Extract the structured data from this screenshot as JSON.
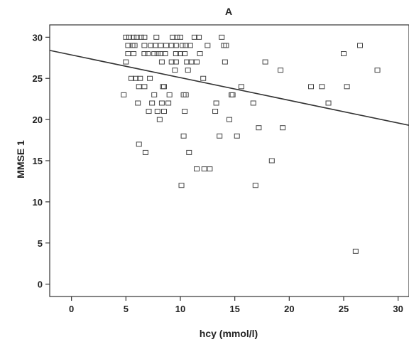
{
  "chart_data": {
    "type": "scatter",
    "title": "A",
    "xlabel": "hcy (mmol/l)",
    "ylabel": "MMSE 1",
    "xlim": [
      -2,
      31
    ],
    "ylim": [
      -1.5,
      31.5
    ],
    "xticks": [
      0,
      5,
      10,
      15,
      20,
      25,
      30
    ],
    "yticks": [
      0,
      5,
      10,
      15,
      20,
      25,
      30
    ],
    "grid": false,
    "points": [
      [
        5.0,
        30
      ],
      [
        5.3,
        30
      ],
      [
        5.7,
        30
      ],
      [
        6.0,
        30
      ],
      [
        6.4,
        30
      ],
      [
        6.7,
        30
      ],
      [
        7.8,
        30
      ],
      [
        9.3,
        30
      ],
      [
        9.7,
        30
      ],
      [
        10.0,
        30
      ],
      [
        11.3,
        30
      ],
      [
        11.7,
        30
      ],
      [
        13.8,
        30
      ],
      [
        5.2,
        29
      ],
      [
        5.6,
        29
      ],
      [
        5.8,
        29
      ],
      [
        6.7,
        29
      ],
      [
        7.3,
        29
      ],
      [
        7.7,
        29
      ],
      [
        8.2,
        29
      ],
      [
        8.7,
        29
      ],
      [
        9.2,
        29
      ],
      [
        9.6,
        29
      ],
      [
        10.2,
        29
      ],
      [
        10.5,
        29
      ],
      [
        10.9,
        29
      ],
      [
        12.5,
        29
      ],
      [
        14.0,
        29
      ],
      [
        14.2,
        29
      ],
      [
        26.5,
        29
      ],
      [
        5.2,
        28
      ],
      [
        5.7,
        28
      ],
      [
        6.7,
        28
      ],
      [
        7.0,
        28
      ],
      [
        7.6,
        28
      ],
      [
        7.9,
        28
      ],
      [
        8.2,
        28
      ],
      [
        8.6,
        28
      ],
      [
        9.6,
        28
      ],
      [
        10.0,
        28
      ],
      [
        10.4,
        28
      ],
      [
        11.8,
        28
      ],
      [
        25.0,
        28
      ],
      [
        5.0,
        27
      ],
      [
        8.3,
        27
      ],
      [
        9.2,
        27
      ],
      [
        9.6,
        27
      ],
      [
        10.6,
        27
      ],
      [
        11.0,
        27
      ],
      [
        11.5,
        27
      ],
      [
        14.1,
        27
      ],
      [
        17.8,
        27
      ],
      [
        9.5,
        26
      ],
      [
        10.7,
        26
      ],
      [
        19.2,
        26
      ],
      [
        28.1,
        26
      ],
      [
        5.5,
        25
      ],
      [
        5.9,
        25
      ],
      [
        6.3,
        25
      ],
      [
        7.2,
        25
      ],
      [
        12.1,
        25
      ],
      [
        6.2,
        24
      ],
      [
        6.7,
        24
      ],
      [
        8.4,
        24
      ],
      [
        8.5,
        24
      ],
      [
        15.6,
        24
      ],
      [
        22.0,
        24
      ],
      [
        23.0,
        24
      ],
      [
        25.3,
        24
      ],
      [
        4.8,
        23
      ],
      [
        7.6,
        23
      ],
      [
        9.0,
        23
      ],
      [
        10.3,
        23
      ],
      [
        10.5,
        23
      ],
      [
        14.7,
        23
      ],
      [
        14.8,
        23
      ],
      [
        6.1,
        22
      ],
      [
        7.4,
        22
      ],
      [
        8.3,
        22
      ],
      [
        8.9,
        22
      ],
      [
        13.3,
        22
      ],
      [
        16.7,
        22
      ],
      [
        23.6,
        22
      ],
      [
        7.1,
        21
      ],
      [
        7.9,
        21
      ],
      [
        8.5,
        21
      ],
      [
        10.4,
        21
      ],
      [
        13.2,
        21
      ],
      [
        8.1,
        20
      ],
      [
        14.5,
        20
      ],
      [
        17.2,
        19
      ],
      [
        19.4,
        19
      ],
      [
        10.3,
        18
      ],
      [
        13.6,
        18
      ],
      [
        15.2,
        18
      ],
      [
        6.2,
        17
      ],
      [
        6.8,
        16
      ],
      [
        10.8,
        16
      ],
      [
        18.4,
        15
      ],
      [
        11.5,
        14
      ],
      [
        12.2,
        14
      ],
      [
        12.7,
        14
      ],
      [
        10.1,
        12
      ],
      [
        16.9,
        12
      ],
      [
        26.1,
        4
      ]
    ],
    "fit_line": {
      "x": [
        -2,
        31
      ],
      "y": [
        28.4,
        19.3
      ]
    }
  }
}
